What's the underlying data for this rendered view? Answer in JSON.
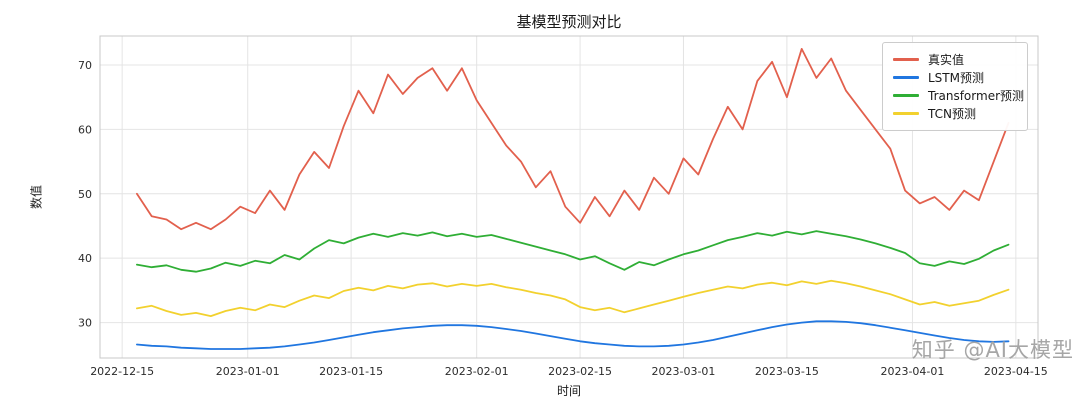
{
  "title": "基模型预测对比",
  "watermark": "知乎 @AI大模型",
  "chart_data": {
    "type": "line",
    "title": "基模型预测对比",
    "xlabel": "时间",
    "ylabel": "数值",
    "grid": true,
    "legend_position": "upper right",
    "xlim": [
      -3,
      124
    ],
    "ylim": [
      24.5,
      74.5
    ],
    "yticks": [
      30,
      40,
      50,
      60,
      70
    ],
    "xticks": {
      "labels": [
        "2022-12-15",
        "2023-01-01",
        "2023-01-15",
        "2023-02-01",
        "2023-02-15",
        "2023-03-01",
        "2023-03-15",
        "2023-04-01",
        "2023-04-15"
      ],
      "days": [
        0,
        17,
        31,
        48,
        62,
        76,
        90,
        107,
        121
      ]
    },
    "x_days_since_2022_12_15": [
      2,
      4,
      6,
      8,
      10,
      12,
      14,
      16,
      18,
      20,
      22,
      24,
      26,
      28,
      30,
      32,
      34,
      36,
      38,
      40,
      42,
      44,
      46,
      48,
      50,
      52,
      54,
      56,
      58,
      60,
      62,
      64,
      66,
      68,
      70,
      72,
      74,
      76,
      78,
      80,
      82,
      84,
      86,
      88,
      90,
      92,
      94,
      96,
      98,
      100,
      102,
      104,
      106,
      108,
      110,
      112,
      114,
      116,
      118,
      120
    ],
    "series": [
      {
        "id": "true-value",
        "name": "真实值",
        "color": "#e2604d",
        "values": [
          50.0,
          46.5,
          46.0,
          44.5,
          45.5,
          44.5,
          46.0,
          48.0,
          47.0,
          50.5,
          47.5,
          53.0,
          56.5,
          54.0,
          60.5,
          66.0,
          62.5,
          68.5,
          65.5,
          68.0,
          69.5,
          66.0,
          69.5,
          64.5,
          61.0,
          57.5,
          55.0,
          51.0,
          53.5,
          48.0,
          45.5,
          49.5,
          46.5,
          50.5,
          47.5,
          52.5,
          50.0,
          55.5,
          53.0,
          58.5,
          63.5,
          60.0,
          67.5,
          70.5,
          65.0,
          72.5,
          68.0,
          71.0,
          66.0,
          63.0,
          60.0,
          57.0,
          50.5,
          48.5,
          49.5,
          47.5,
          50.5,
          49.0,
          55.0,
          61.0
        ]
      },
      {
        "id": "lstm",
        "name": "LSTM预测",
        "color": "#2076e0",
        "values": [
          26.6,
          26.4,
          26.3,
          26.1,
          26.0,
          25.9,
          25.9,
          25.9,
          26.0,
          26.1,
          26.3,
          26.6,
          26.9,
          27.3,
          27.7,
          28.1,
          28.5,
          28.8,
          29.1,
          29.3,
          29.5,
          29.6,
          29.6,
          29.5,
          29.3,
          29.0,
          28.7,
          28.3,
          27.9,
          27.5,
          27.1,
          26.8,
          26.6,
          26.4,
          26.3,
          26.3,
          26.4,
          26.6,
          26.9,
          27.3,
          27.8,
          28.3,
          28.8,
          29.3,
          29.7,
          30.0,
          30.2,
          30.2,
          30.1,
          29.9,
          29.6,
          29.2,
          28.8,
          28.4,
          28.0,
          27.6,
          27.3,
          27.1,
          27.0,
          27.1
        ]
      },
      {
        "id": "transformer",
        "name": "Transformer预测",
        "color": "#2fae35",
        "values": [
          39.0,
          38.6,
          38.9,
          38.2,
          37.9,
          38.4,
          39.3,
          38.8,
          39.6,
          39.2,
          40.5,
          39.8,
          41.5,
          42.8,
          42.3,
          43.2,
          43.8,
          43.3,
          43.9,
          43.5,
          44.0,
          43.4,
          43.8,
          43.3,
          43.6,
          43.0,
          42.4,
          41.8,
          41.2,
          40.6,
          39.8,
          40.3,
          39.2,
          38.2,
          39.4,
          38.9,
          39.8,
          40.6,
          41.2,
          42.0,
          42.8,
          43.3,
          43.9,
          43.5,
          44.1,
          43.7,
          44.2,
          43.8,
          43.4,
          42.9,
          42.3,
          41.6,
          40.8,
          39.2,
          38.8,
          39.5,
          39.1,
          39.9,
          41.2,
          42.1
        ]
      },
      {
        "id": "tcn",
        "name": "TCN预测",
        "color": "#f2d12e",
        "values": [
          32.2,
          32.6,
          31.8,
          31.2,
          31.5,
          31.0,
          31.8,
          32.3,
          31.9,
          32.8,
          32.4,
          33.4,
          34.2,
          33.8,
          34.9,
          35.4,
          35.0,
          35.7,
          35.3,
          35.9,
          36.1,
          35.6,
          36.0,
          35.7,
          36.0,
          35.5,
          35.1,
          34.6,
          34.2,
          33.6,
          32.4,
          31.9,
          32.3,
          31.6,
          32.2,
          32.8,
          33.4,
          34.0,
          34.6,
          35.1,
          35.6,
          35.3,
          35.9,
          36.2,
          35.8,
          36.4,
          36.0,
          36.5,
          36.1,
          35.6,
          35.0,
          34.4,
          33.6,
          32.8,
          33.2,
          32.6,
          33.0,
          33.4,
          34.3,
          35.1
        ]
      }
    ]
  }
}
